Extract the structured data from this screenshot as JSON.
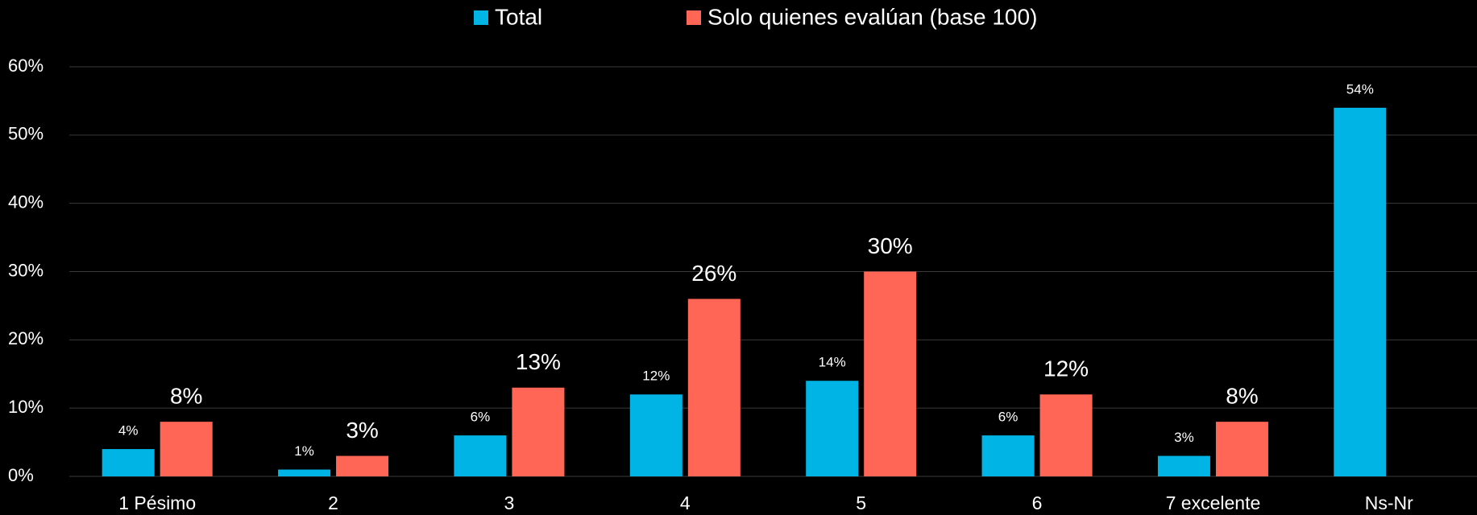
{
  "chart_data": {
    "type": "bar",
    "categories": [
      "1 Pésimo",
      "2",
      "3",
      "4",
      "5",
      "6",
      "7 excelente",
      "Ns-Nr"
    ],
    "series": [
      {
        "name": "Total",
        "color": "#00b4e6",
        "values": [
          4,
          1,
          6,
          12,
          14,
          6,
          3,
          54
        ],
        "value_labels": [
          "4%",
          "1%",
          "6%",
          "12%",
          "14%",
          "6%",
          "3%",
          "54%"
        ]
      },
      {
        "name": "Solo quienes evalúan (base 100)",
        "color": "#ff6655",
        "values": [
          8,
          3,
          13,
          26,
          30,
          12,
          8,
          null
        ],
        "value_labels": [
          "8%",
          "3%",
          "13%",
          "26%",
          "30%",
          "12%",
          "8%",
          null
        ]
      }
    ],
    "ylim": [
      0,
      60
    ],
    "yticks": [
      {
        "value": 0,
        "label": "0%"
      },
      {
        "value": 10,
        "label": "10%"
      },
      {
        "value": 20,
        "label": "20%"
      },
      {
        "value": 30,
        "label": "30%"
      },
      {
        "value": 40,
        "label": "40%"
      },
      {
        "value": 50,
        "label": "50%"
      },
      {
        "value": 60,
        "label": "60%"
      }
    ],
    "grid": true,
    "legend": "top"
  }
}
